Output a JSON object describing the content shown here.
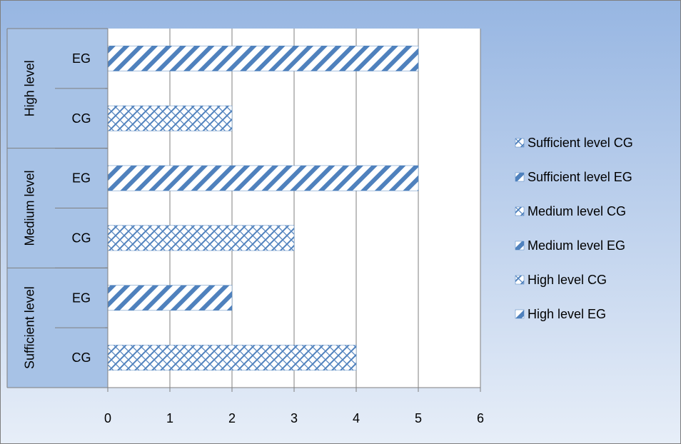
{
  "colors": {
    "background_top": "#97B6E2",
    "background_bottom": "#E7EEF8",
    "plot_area": "#FFFFFF",
    "category_band": "#A7C2E6",
    "axis_line": "#7F7F7F",
    "gridline": "#7F7F7F",
    "bar_pattern": "#4F81BD",
    "frame": "#7F7F7F"
  },
  "chart_data": {
    "type": "bar",
    "orientation": "horizontal",
    "groups": [
      "Sufficient level",
      "Medium level",
      "High level"
    ],
    "subcategories": [
      "CG",
      "EG"
    ],
    "series": [
      {
        "name": "Sufficient level CG",
        "group": "Sufficient level",
        "subcategory": "CG",
        "value": 4,
        "pattern": "crosshatch"
      },
      {
        "name": "Sufficient level EG",
        "group": "Sufficient level",
        "subcategory": "EG",
        "value": 2,
        "pattern": "diagonal"
      },
      {
        "name": "Medium level CG",
        "group": "Medium level",
        "subcategory": "CG",
        "value": 3,
        "pattern": "crosshatch"
      },
      {
        "name": "Medium level EG",
        "group": "Medium level",
        "subcategory": "EG",
        "value": 5,
        "pattern": "diagonal"
      },
      {
        "name": "High level CG",
        "group": "High level",
        "subcategory": "CG",
        "value": 2,
        "pattern": "crosshatch"
      },
      {
        "name": "High level EG",
        "group": "High level",
        "subcategory": "EG",
        "value": 5,
        "pattern": "diagonal"
      }
    ],
    "legend": [
      "Sufficient level CG",
      "Sufficient level EG",
      "Medium level CG",
      "Medium level EG",
      "High level CG",
      "High level EG"
    ],
    "legend_position": "right",
    "xlim": [
      0,
      6
    ],
    "xticks": [
      0,
      1,
      2,
      3,
      4,
      5,
      6
    ],
    "grid": "vertical",
    "title": "",
    "xlabel": "",
    "ylabel": ""
  }
}
